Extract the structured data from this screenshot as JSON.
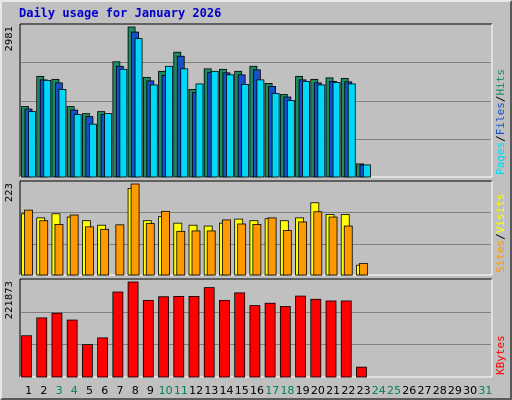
{
  "chart_data": {
    "type": "bar",
    "title": "Daily usage for January 2026",
    "categories": [
      "1",
      "2",
      "3",
      "4",
      "5",
      "6",
      "7",
      "8",
      "9",
      "10",
      "11",
      "12",
      "13",
      "14",
      "15",
      "16",
      "17",
      "18",
      "19",
      "20",
      "21",
      "22",
      "23",
      "24",
      "25",
      "26",
      "27",
      "28",
      "29",
      "30",
      "31"
    ],
    "weekend_days": [
      "3",
      "4",
      "10",
      "11",
      "17",
      "18",
      "24",
      "25",
      "31"
    ],
    "panels": [
      {
        "id": "requests",
        "ymax": 2981,
        "ylabel_max": "2981",
        "series": [
          {
            "name": "Hits",
            "color": "#1e8a62",
            "values": [
              1400,
              2000,
              1940,
              1400,
              1260,
              1300,
              2290,
              2981,
              1980,
              2100,
              2480,
              1740,
              2150,
              2140,
              2100,
              2200,
              1860,
              1640,
              2000,
              1940,
              1970,
              1960,
              260,
              0,
              0,
              0,
              0,
              0,
              0,
              0,
              0
            ]
          },
          {
            "name": "Files",
            "color": "#1450c8",
            "values": [
              1350,
              1930,
              1870,
              1330,
              1200,
              1240,
              2200,
              2880,
              1910,
              2020,
              2400,
              1680,
              2080,
              2070,
              2030,
              2130,
              1800,
              1590,
              1930,
              1870,
              1900,
              1890,
              240,
              0,
              0,
              0,
              0,
              0,
              0,
              0,
              0
            ]
          },
          {
            "name": "Pages",
            "color": "#00d8f5",
            "values": [
              1300,
              1920,
              1740,
              1240,
              1050,
              1260,
              2140,
              2750,
              1830,
              2200,
              2150,
              1850,
              2100,
              2030,
              1840,
              1930,
              1660,
              1520,
              1900,
              1830,
              1880,
              1850,
              240,
              0,
              0,
              0,
              0,
              0,
              0,
              0,
              0
            ]
          }
        ],
        "legend": [
          "Pages",
          "/",
          "Files",
          "/",
          "Hits"
        ],
        "legend_colors": [
          "#00d8f5",
          "#000000",
          "#1450c8",
          "#000000",
          "#1e8a62"
        ]
      },
      {
        "id": "visits",
        "ymax": 223,
        "ylabel_max": "223",
        "series": [
          {
            "name": "Visits",
            "color": "#ffff00",
            "values": [
              150,
              140,
              150,
              142,
              133,
              122,
              0,
              212,
              133,
              143,
              127,
              122,
              120,
              127,
              137,
              133,
              138,
              133,
              140,
              177,
              148,
              148,
              24,
              0,
              0,
              0,
              0,
              0,
              0,
              0,
              0
            ]
          },
          {
            "name": "Sites",
            "color": "#ff9900",
            "values": [
              159,
              133,
              124,
              147,
              118,
              112,
              123,
              223,
              126,
              156,
              107,
              108,
              108,
              135,
              125,
              124,
              140,
              109,
              130,
              155,
              142,
              120,
              28,
              0,
              0,
              0,
              0,
              0,
              0,
              0,
              0
            ]
          }
        ],
        "legend": [
          "Sites",
          "/",
          "Visits"
        ],
        "legend_colors": [
          "#ff9900",
          "#000000",
          "#ffff00"
        ]
      },
      {
        "id": "kbytes",
        "ymax": 221873,
        "ylabel_max": "221873",
        "series": [
          {
            "name": "KBytes",
            "color": "#ff0000",
            "values": [
              96400,
              138000,
              149000,
              133000,
              75600,
              91400,
              198500,
              221873,
              179000,
              187500,
              188200,
              188200,
              208800,
              179000,
              196500,
              166800,
              172300,
              164600,
              189000,
              181500,
              177600,
              177600,
              23000,
              0,
              0,
              0,
              0,
              0,
              0,
              0,
              0
            ]
          }
        ],
        "legend": [
          "KBytes"
        ],
        "legend_colors": [
          "#ff0000"
        ]
      }
    ]
  },
  "colors": {
    "title": "#0000cc",
    "weekday_label": "#000000",
    "weekend_label": "#00805a",
    "plot_bg": "#c0c0c0",
    "grid": "#808080"
  }
}
